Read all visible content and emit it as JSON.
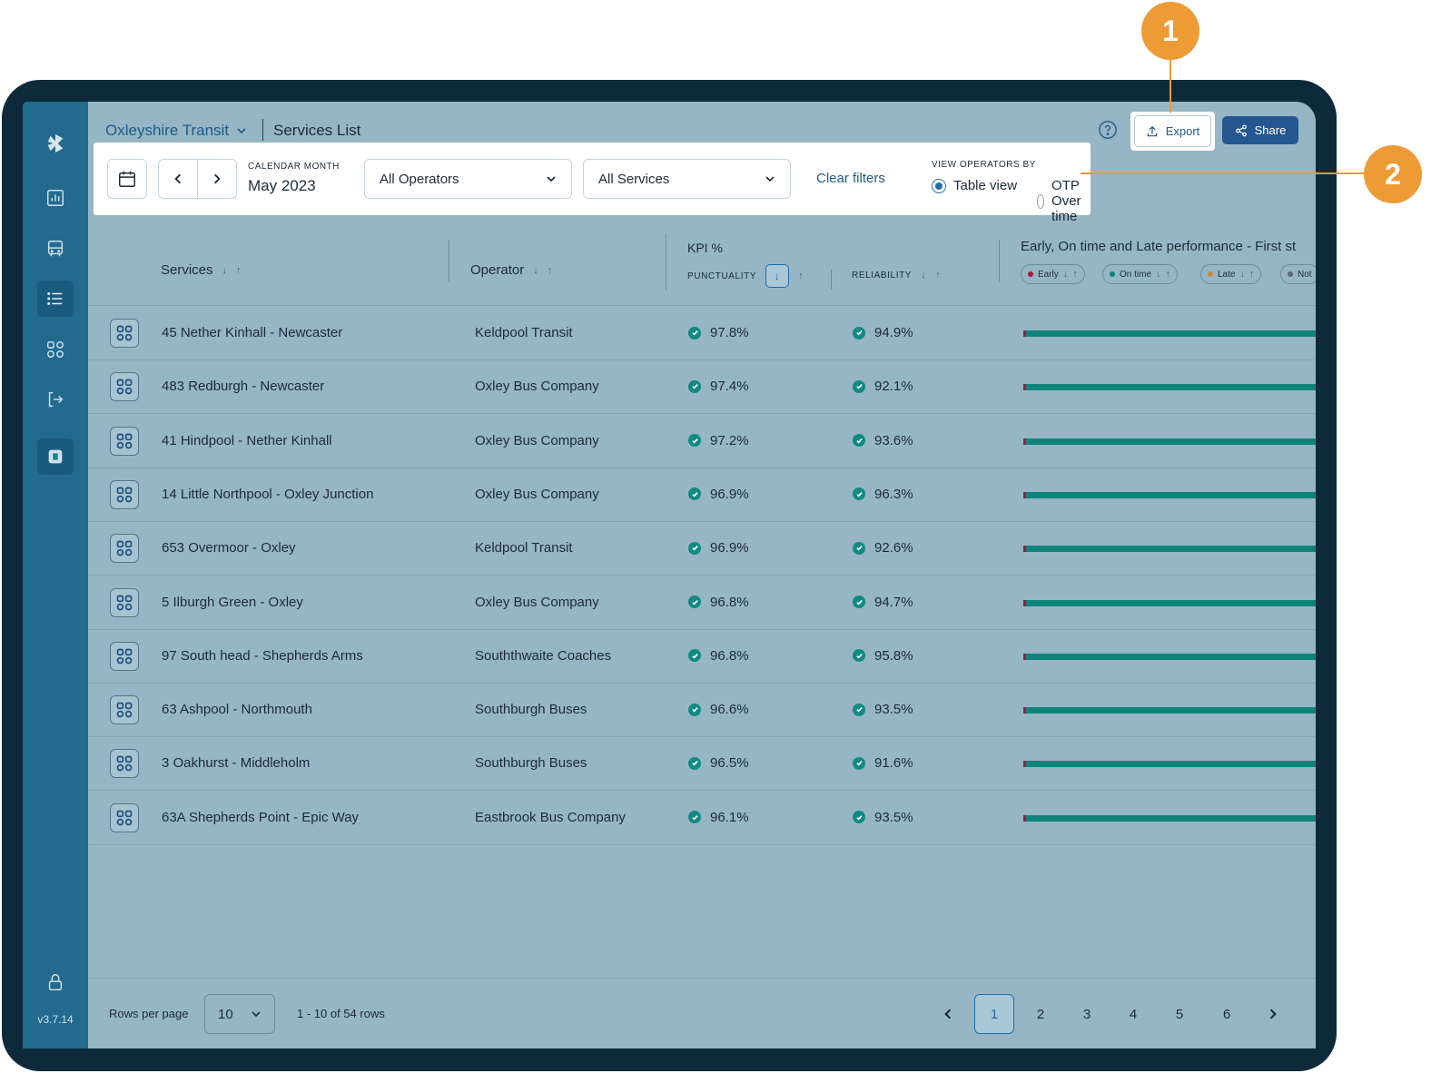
{
  "header": {
    "app_name": "Oxleyshire Transit",
    "page_title": "Services List",
    "export_label": "Export",
    "share_label": "Share"
  },
  "filters": {
    "month_label": "CALENDAR MONTH",
    "month_value": "May 2023",
    "operator_select": "All Operators",
    "service_select": "All Services",
    "clear_label": "Clear filters",
    "view_label": "VIEW OPERATORS BY",
    "view_options": [
      {
        "label": "Table view",
        "selected": true
      },
      {
        "label": "OTP Over time",
        "selected": false
      }
    ]
  },
  "table": {
    "col_services": "Services",
    "col_operator": "Operator",
    "col_kpi": "KPI %",
    "col_punctuality": "PUNCTUALITY",
    "col_reliability": "RELIABILITY",
    "col_performance": "Early, On time and Late performance - First st",
    "legend": [
      {
        "label": "Early",
        "color": "#a31a3b"
      },
      {
        "label": "On time",
        "color": "#0e8478"
      },
      {
        "label": "Late",
        "color": "#c8863a"
      },
      {
        "label": "Not",
        "color": "#5d6b74"
      }
    ],
    "rows": [
      {
        "service": "45 Nether Kinhall - Newcaster",
        "operator": "Keldpool Transit",
        "punctuality": "97.8%",
        "reliability": "94.9%"
      },
      {
        "service": "483 Redburgh - Newcaster",
        "operator": "Oxley Bus Company",
        "punctuality": "97.4%",
        "reliability": "92.1%"
      },
      {
        "service": "41 Hindpool - Nether Kinhall",
        "operator": "Oxley Bus Company",
        "punctuality": "97.2%",
        "reliability": "93.6%"
      },
      {
        "service": "14 Little Northpool - Oxley Junction",
        "operator": "Oxley Bus Company",
        "punctuality": "96.9%",
        "reliability": "96.3%"
      },
      {
        "service": "653 Overmoor - Oxley",
        "operator": "Keldpool Transit",
        "punctuality": "96.9%",
        "reliability": "92.6%"
      },
      {
        "service": "5 Ilburgh Green - Oxley",
        "operator": "Oxley Bus Company",
        "punctuality": "96.8%",
        "reliability": "94.7%"
      },
      {
        "service": "97 South head - Shepherds Arms",
        "operator": "Souththwaite Coaches",
        "punctuality": "96.8%",
        "reliability": "95.8%"
      },
      {
        "service": "63 Ashpool - Northmouth",
        "operator": "Southburgh Buses",
        "punctuality": "96.6%",
        "reliability": "93.5%"
      },
      {
        "service": "3 Oakhurst - Middleholm",
        "operator": "Southburgh Buses",
        "punctuality": "96.5%",
        "reliability": "91.6%"
      },
      {
        "service": "63A Shepherds Point - Epic Way",
        "operator": "Eastbrook Bus Company",
        "punctuality": "96.1%",
        "reliability": "93.5%"
      }
    ]
  },
  "footer": {
    "rows_per_page_label": "Rows per page",
    "rows_per_page_value": "10",
    "range_text": "1 - 10 of 54 rows",
    "pages": [
      "1",
      "2",
      "3",
      "4",
      "5",
      "6"
    ],
    "current_page": "1"
  },
  "sidebar": {
    "version": "v3.7.14"
  },
  "callouts": [
    "1",
    "2"
  ]
}
